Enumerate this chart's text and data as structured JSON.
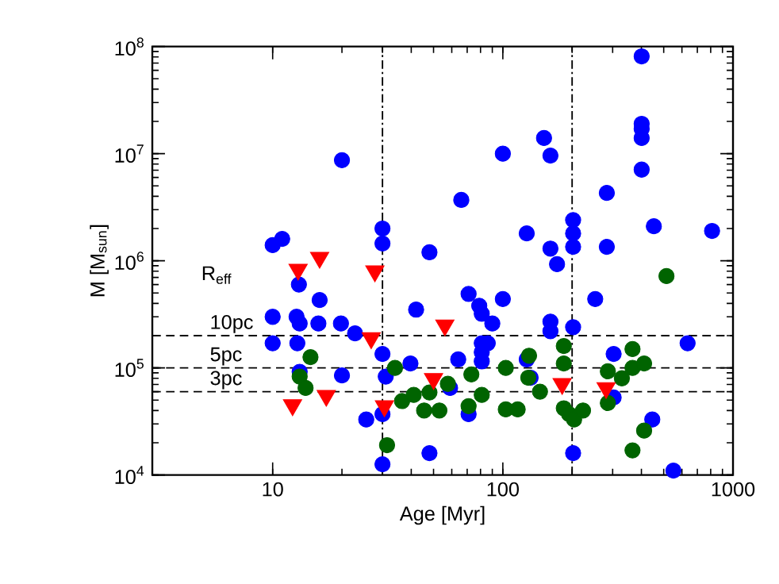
{
  "chart_data": {
    "type": "scatter",
    "xlabel": "Age [Myr]",
    "ylabel": "M [M$_{sun}$]",
    "log": "xy",
    "xlim": [
      3,
      1000
    ],
    "ylim": [
      10000,
      100000000
    ],
    "xticks": [
      10,
      100,
      1000
    ],
    "yticks": [
      {
        "value": 10000,
        "label": "10$^{4}$"
      },
      {
        "value": 100000,
        "label": "10$^{5}$"
      },
      {
        "value": 1000000,
        "label": "10$^{6}$"
      },
      {
        "value": 10000000,
        "label": "10$^{7}$"
      },
      {
        "value": 100000000,
        "label": "10$^{8}$"
      }
    ],
    "grid": false,
    "annotations": [
      "R$_{eff}$"
    ],
    "ref_lines": [
      {
        "axis": "y",
        "value": 200000,
        "label": "10pc",
        "line_style": "dashed",
        "color": "#000000"
      },
      {
        "axis": "y",
        "value": 100000,
        "label": "5pc",
        "line_style": "dashed",
        "color": "#000000"
      },
      {
        "axis": "y",
        "value": 60000,
        "label": "3pc",
        "line_style": "dashed",
        "color": "#000000"
      },
      {
        "axis": "x",
        "value": 30,
        "line_style": "dashdot",
        "color": "#000000"
      },
      {
        "axis": "x",
        "value": 200,
        "line_style": "dashdot",
        "color": "#000000"
      }
    ],
    "series": [
      {
        "color": "#0000ff",
        "marker": "circle",
        "x": [
          10,
          11,
          20,
          30,
          30,
          13,
          16,
          10,
          12.7,
          13.1,
          15.8,
          19.8,
          22.8,
          10,
          12.8,
          30,
          39.7,
          13.1,
          20,
          31,
          25.5,
          30,
          30,
          42,
          48,
          48,
          401,
          401,
          401,
          401,
          401,
          151,
          100,
          161,
          66,
          283,
          202,
          202,
          202,
          127,
          161,
          283,
          453,
          811,
          71,
          79,
          81,
          90,
          100,
          81,
          86,
          81,
          81,
          64,
          161,
          161,
          172,
          202,
          252,
          303,
          635,
          446,
          551,
          202,
          59,
          71,
          127,
          132,
          303
        ],
        "values": [
          1400000,
          1600000,
          8700000,
          2000000,
          1450000,
          600000,
          430000,
          300000,
          300000,
          260000,
          260000,
          260000,
          210000,
          170000,
          170000,
          135000,
          110000,
          92000,
          85000,
          83000,
          33000,
          37000,
          12600,
          350000,
          1200000,
          16000,
          81000000,
          19000000,
          17000000,
          14000000,
          7100000,
          14000000,
          10000000,
          9600000,
          3700000,
          4300000,
          2400000,
          1800000,
          1350000,
          1800000,
          1300000,
          1350000,
          2100000,
          1900000,
          490000,
          380000,
          320000,
          260000,
          440000,
          170000,
          170000,
          140000,
          115000,
          120000,
          270000,
          220000,
          930000,
          240000,
          440000,
          135000,
          170000,
          33000,
          11000,
          16000,
          65000,
          37000,
          120000,
          81000,
          53000
        ]
      },
      {
        "color": "#006400",
        "marker": "circle",
        "x": [
          14.6,
          13.1,
          13.9,
          31.4,
          34,
          36.5,
          41,
          45.5,
          53,
          48,
          57.7,
          73,
          71,
          81,
          103,
          103,
          116,
          130,
          129,
          145,
          184,
          184,
          184,
          194,
          204,
          223,
          286,
          286,
          329,
          366,
          366,
          411,
          411,
          366,
          514
        ],
        "values": [
          126000,
          83000,
          65000,
          19000,
          100000,
          49000,
          56000,
          40000,
          40000,
          59000,
          71000,
          87000,
          44000,
          56000,
          100000,
          41000,
          41000,
          130000,
          81000,
          60000,
          160000,
          110000,
          42000,
          37000,
          33000,
          40000,
          93000,
          47000,
          80000,
          150000,
          100000,
          110000,
          26000,
          17000,
          720000
        ]
      },
      {
        "color": "#ff0000",
        "marker": "triangle",
        "x": [
          12.9,
          16,
          27.8,
          26.8,
          12.2,
          17.1,
          30.6,
          56,
          50,
          181,
          281
        ],
        "values": [
          830000,
          1070000,
          800000,
          190000,
          45000,
          55000,
          44000,
          250000,
          79000,
          71000,
          65000
        ]
      }
    ]
  }
}
